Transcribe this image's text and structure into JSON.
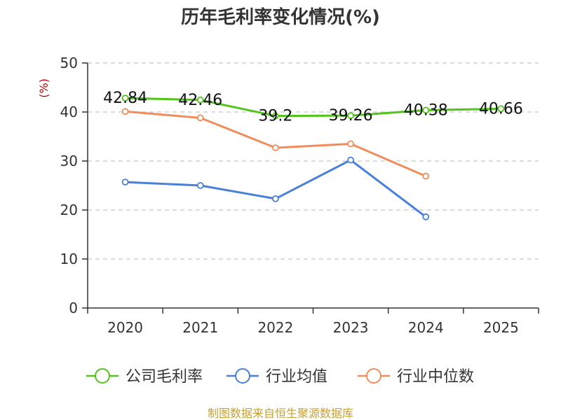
{
  "chart_data": {
    "type": "line",
    "title": "历年毛利率变化情况(%)",
    "unit_label": "(%)",
    "categories": [
      "2020",
      "2021",
      "2022",
      "2023",
      "2024",
      "2025"
    ],
    "ylim": [
      0,
      50
    ],
    "yticks": [
      0,
      10,
      20,
      30,
      40,
      50
    ],
    "grid": true,
    "legend_position": "bottom",
    "series": [
      {
        "name": "公司毛利率",
        "color": "#52c41a",
        "values": [
          42.84,
          42.46,
          39.2,
          39.26,
          40.38,
          40.66
        ],
        "data_labels": [
          "42.84",
          "42.46",
          "39.2",
          "39.26",
          "40.38",
          "40.66"
        ]
      },
      {
        "name": "行业均值",
        "color": "#4a7fdc",
        "values": [
          25.7,
          25.0,
          22.3,
          30.2,
          18.6,
          null
        ]
      },
      {
        "name": "行业中位数",
        "color": "#f28c5a",
        "values": [
          40.1,
          38.8,
          32.7,
          33.5,
          26.9,
          null
        ]
      }
    ]
  },
  "footer": {
    "source": "制图数据来自恒生聚源数据库"
  }
}
